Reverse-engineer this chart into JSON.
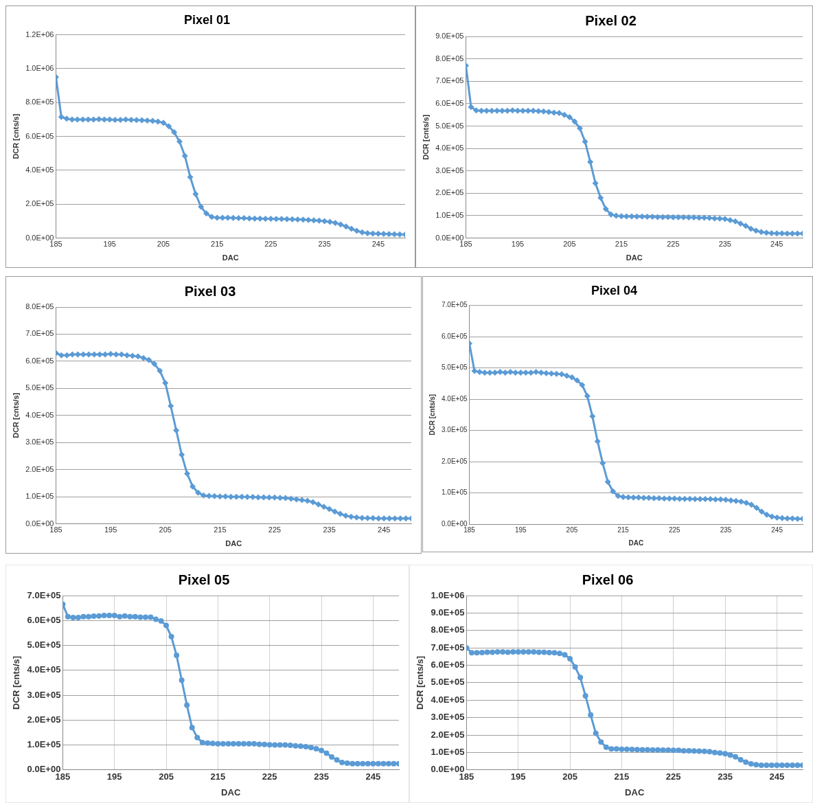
{
  "chart_data": [
    {
      "type": "line",
      "title": "Pixel 01",
      "xlabel": "DAC",
      "ylabel": "DCR [cnts/s]",
      "marker": "diamond",
      "grid": "y",
      "xlim": [
        185,
        250
      ],
      "xticks": [
        185,
        195,
        205,
        215,
        225,
        235,
        245
      ],
      "ylim": [
        0,
        1200000
      ],
      "yticks": [
        {
          "value": 0,
          "label": "0.0E+00"
        },
        {
          "value": 200000,
          "label": "2.0E+05"
        },
        {
          "value": 400000,
          "label": "4.0E+05"
        },
        {
          "value": 600000,
          "label": "6.0E+05"
        },
        {
          "value": 800000,
          "label": "8.0E+05"
        },
        {
          "value": 1000000,
          "label": "1.0E+06"
        },
        {
          "value": 1200000,
          "label": "1.2E+06"
        }
      ],
      "x": [
        185,
        186,
        187,
        188,
        189,
        190,
        191,
        192,
        193,
        194,
        195,
        196,
        197,
        198,
        199,
        200,
        201,
        202,
        203,
        204,
        205,
        206,
        207,
        208,
        209,
        210,
        211,
        212,
        213,
        214,
        215,
        216,
        217,
        218,
        219,
        220,
        221,
        222,
        223,
        224,
        225,
        226,
        227,
        228,
        229,
        230,
        231,
        232,
        233,
        234,
        235,
        236,
        237,
        238,
        239,
        240,
        241,
        242,
        243,
        244,
        245,
        246,
        247,
        248,
        249,
        250
      ],
      "series": [
        {
          "color": "#5b9bd5",
          "values": [
            950000,
            715000,
            705000,
            700000,
            700000,
            700000,
            700000,
            700000,
            702000,
            700000,
            700000,
            698000,
            698000,
            700000,
            698000,
            697000,
            696000,
            694000,
            692000,
            688000,
            680000,
            660000,
            625000,
            570000,
            485000,
            360000,
            260000,
            185000,
            145000,
            125000,
            120000,
            120000,
            120000,
            119000,
            118000,
            118000,
            116000,
            115000,
            115000,
            114000,
            114000,
            113000,
            113000,
            112000,
            111000,
            110000,
            109000,
            107000,
            105000,
            103000,
            100000,
            96000,
            90000,
            80000,
            68000,
            55000,
            43000,
            34000,
            29000,
            27000,
            26000,
            25000,
            24000,
            23000,
            22000,
            21000
          ]
        }
      ]
    },
    {
      "type": "line",
      "title": "Pixel 02",
      "xlabel": "DAC",
      "ylabel": "DCR [cnts/s]",
      "marker": "diamond",
      "grid": "y",
      "xlim": [
        185,
        250
      ],
      "xticks": [
        185,
        195,
        205,
        215,
        225,
        235,
        245
      ],
      "ylim": [
        0,
        900000
      ],
      "yticks": [
        {
          "value": 0,
          "label": "0.0E+00"
        },
        {
          "value": 100000,
          "label": "1.0E+05"
        },
        {
          "value": 200000,
          "label": "2.0E+05"
        },
        {
          "value": 300000,
          "label": "3.0E+05"
        },
        {
          "value": 400000,
          "label": "4.0E+05"
        },
        {
          "value": 500000,
          "label": "5.0E+05"
        },
        {
          "value": 600000,
          "label": "6.0E+05"
        },
        {
          "value": 700000,
          "label": "7.0E+05"
        },
        {
          "value": 800000,
          "label": "8.0E+05"
        },
        {
          "value": 900000,
          "label": "9.0E+05"
        }
      ],
      "x": [
        185,
        186,
        187,
        188,
        189,
        190,
        191,
        192,
        193,
        194,
        195,
        196,
        197,
        198,
        199,
        200,
        201,
        202,
        203,
        204,
        205,
        206,
        207,
        208,
        209,
        210,
        211,
        212,
        213,
        214,
        215,
        216,
        217,
        218,
        219,
        220,
        221,
        222,
        223,
        224,
        225,
        226,
        227,
        228,
        229,
        230,
        231,
        232,
        233,
        234,
        235,
        236,
        237,
        238,
        239,
        240,
        241,
        242,
        243,
        244,
        245,
        246,
        247,
        248,
        249,
        250
      ],
      "series": [
        {
          "color": "#5b9bd5",
          "values": [
            770000,
            585000,
            570000,
            568000,
            568000,
            568000,
            568000,
            568000,
            568000,
            570000,
            568000,
            568000,
            568000,
            568000,
            567000,
            565000,
            563000,
            560000,
            558000,
            550000,
            540000,
            520000,
            490000,
            430000,
            340000,
            245000,
            180000,
            130000,
            105000,
            100000,
            98000,
            97000,
            97000,
            96000,
            96000,
            95000,
            95000,
            94000,
            94000,
            94000,
            93000,
            93000,
            93000,
            92000,
            92000,
            91000,
            91000,
            90000,
            88000,
            87000,
            85000,
            80000,
            75000,
            65000,
            55000,
            42000,
            33000,
            27000,
            24000,
            22000,
            21000,
            21000,
            20000,
            20000,
            20000,
            20000
          ]
        }
      ]
    },
    {
      "type": "line",
      "title": "Pixel 03",
      "xlabel": "DAC",
      "ylabel": "DCR [cnts/s]",
      "marker": "diamond",
      "grid": "y",
      "xlim": [
        185,
        250
      ],
      "xticks": [
        185,
        195,
        205,
        215,
        225,
        235,
        245
      ],
      "ylim": [
        0,
        800000
      ],
      "yticks": [
        {
          "value": 0,
          "label": "0.0E+00"
        },
        {
          "value": 100000,
          "label": "1.0E+05"
        },
        {
          "value": 200000,
          "label": "2.0E+05"
        },
        {
          "value": 300000,
          "label": "3.0E+05"
        },
        {
          "value": 400000,
          "label": "4.0E+05"
        },
        {
          "value": 500000,
          "label": "5.0E+05"
        },
        {
          "value": 600000,
          "label": "6.0E+05"
        },
        {
          "value": 700000,
          "label": "7.0E+05"
        },
        {
          "value": 800000,
          "label": "8.0E+05"
        }
      ],
      "x": [
        185,
        186,
        187,
        188,
        189,
        190,
        191,
        192,
        193,
        194,
        195,
        196,
        197,
        198,
        199,
        200,
        201,
        202,
        203,
        204,
        205,
        206,
        207,
        208,
        209,
        210,
        211,
        212,
        213,
        214,
        215,
        216,
        217,
        218,
        219,
        220,
        221,
        222,
        223,
        224,
        225,
        226,
        227,
        228,
        229,
        230,
        231,
        232,
        233,
        234,
        235,
        236,
        237,
        238,
        239,
        240,
        241,
        242,
        243,
        244,
        245,
        246,
        247,
        248,
        249,
        250
      ],
      "series": [
        {
          "color": "#5b9bd5",
          "values": [
            630000,
            622000,
            622000,
            625000,
            625000,
            625000,
            625000,
            625000,
            625000,
            625000,
            627000,
            625000,
            625000,
            622000,
            620000,
            618000,
            612000,
            605000,
            590000,
            565000,
            520000,
            435000,
            345000,
            255000,
            185000,
            138000,
            115000,
            105000,
            103000,
            102000,
            101000,
            101000,
            100000,
            100000,
            100000,
            99000,
            99000,
            98000,
            98000,
            97000,
            97000,
            96000,
            95000,
            93000,
            90000,
            88000,
            85000,
            80000,
            72000,
            63000,
            55000,
            45000,
            37000,
            30000,
            26000,
            24000,
            22000,
            21000,
            21000,
            20000,
            20000,
            20000,
            20000,
            20000,
            20000,
            20000
          ]
        }
      ]
    },
    {
      "type": "line",
      "title": "Pixel 04",
      "xlabel": "DAC",
      "ylabel": "DCR [cnts/s]",
      "marker": "diamond",
      "grid": "y",
      "xlim": [
        185,
        250
      ],
      "xticks": [
        185,
        195,
        205,
        215,
        225,
        235,
        245
      ],
      "ylim": [
        0,
        700000
      ],
      "yticks": [
        {
          "value": 0,
          "label": "0.0E+00"
        },
        {
          "value": 100000,
          "label": "1.0E+05"
        },
        {
          "value": 200000,
          "label": "2.0E+05"
        },
        {
          "value": 300000,
          "label": "3.0E+05"
        },
        {
          "value": 400000,
          "label": "4.0E+05"
        },
        {
          "value": 500000,
          "label": "5.0E+05"
        },
        {
          "value": 600000,
          "label": "6.0E+05"
        },
        {
          "value": 700000,
          "label": "7.0E+05"
        }
      ],
      "x": [
        185,
        186,
        187,
        188,
        189,
        190,
        191,
        192,
        193,
        194,
        195,
        196,
        197,
        198,
        199,
        200,
        201,
        202,
        203,
        204,
        205,
        206,
        207,
        208,
        209,
        210,
        211,
        212,
        213,
        214,
        215,
        216,
        217,
        218,
        219,
        220,
        221,
        222,
        223,
        224,
        225,
        226,
        227,
        228,
        229,
        230,
        231,
        232,
        233,
        234,
        235,
        236,
        237,
        238,
        239,
        240,
        241,
        242,
        243,
        244,
        245,
        246,
        247,
        248,
        249,
        250
      ],
      "series": [
        {
          "color": "#5b9bd5",
          "values": [
            578000,
            490000,
            487000,
            485000,
            485000,
            485000,
            487000,
            485000,
            487000,
            485000,
            485000,
            485000,
            485000,
            487000,
            485000,
            483000,
            482000,
            481000,
            480000,
            475000,
            470000,
            460000,
            445000,
            410000,
            345000,
            265000,
            195000,
            135000,
            105000,
            90000,
            87000,
            86000,
            85000,
            85000,
            84000,
            84000,
            83000,
            83000,
            82000,
            82000,
            82000,
            81000,
            81000,
            81000,
            80000,
            80000,
            80000,
            80000,
            79000,
            79000,
            78000,
            76000,
            74000,
            72000,
            68000,
            62000,
            52000,
            40000,
            30000,
            24000,
            21000,
            19000,
            18000,
            18000,
            17000,
            17000
          ]
        }
      ]
    },
    {
      "type": "line",
      "title": "Pixel 05",
      "xlabel": "DAC",
      "ylabel": "DCR [cnts/s]",
      "marker": "circle",
      "grid": true,
      "xlim": [
        185,
        250
      ],
      "xticks": [
        185,
        195,
        205,
        215,
        225,
        235,
        245
      ],
      "ylim": [
        0,
        700000
      ],
      "yticks": [
        {
          "value": 0,
          "label": "0.0E+00"
        },
        {
          "value": 100000,
          "label": "1.0E+05"
        },
        {
          "value": 200000,
          "label": "2.0E+05"
        },
        {
          "value": 300000,
          "label": "3.0E+05"
        },
        {
          "value": 400000,
          "label": "4.0E+05"
        },
        {
          "value": 500000,
          "label": "5.0E+05"
        },
        {
          "value": 600000,
          "label": "6.0E+05"
        },
        {
          "value": 700000,
          "label": "7.0E+05"
        }
      ],
      "x": [
        185,
        186,
        187,
        188,
        189,
        190,
        191,
        192,
        193,
        194,
        195,
        196,
        197,
        198,
        199,
        200,
        201,
        202,
        203,
        204,
        205,
        206,
        207,
        208,
        209,
        210,
        211,
        212,
        213,
        214,
        215,
        216,
        217,
        218,
        219,
        220,
        221,
        222,
        223,
        224,
        225,
        226,
        227,
        228,
        229,
        230,
        231,
        232,
        233,
        234,
        235,
        236,
        237,
        238,
        239,
        240,
        241,
        242,
        243,
        244,
        245,
        246,
        247,
        248,
        249,
        250
      ],
      "series": [
        {
          "color": "#5b9bd5",
          "values": [
            665000,
            615000,
            612000,
            612000,
            615000,
            615000,
            617000,
            618000,
            620000,
            620000,
            620000,
            615000,
            618000,
            615000,
            615000,
            613000,
            613000,
            613000,
            605000,
            598000,
            580000,
            535000,
            460000,
            360000,
            260000,
            170000,
            130000,
            110000,
            108000,
            106000,
            105000,
            105000,
            105000,
            105000,
            105000,
            105000,
            105000,
            105000,
            103000,
            102000,
            101000,
            100000,
            100000,
            100000,
            99000,
            97000,
            95000,
            93000,
            90000,
            85000,
            78000,
            67000,
            52000,
            40000,
            30000,
            27000,
            25000,
            25000,
            25000,
            25000,
            25000,
            25000,
            25000,
            25000,
            25000,
            25000
          ]
        }
      ]
    },
    {
      "type": "line",
      "title": "Pixel 06",
      "xlabel": "DAC",
      "ylabel": "DCR [cnts/s]",
      "marker": "circle",
      "grid": true,
      "xlim": [
        185,
        250
      ],
      "xticks": [
        185,
        195,
        205,
        215,
        225,
        235,
        245
      ],
      "ylim": [
        0,
        1000000
      ],
      "yticks": [
        {
          "value": 0,
          "label": "0.0E+00"
        },
        {
          "value": 100000,
          "label": "1.0E+05"
        },
        {
          "value": 200000,
          "label": "2.0E+05"
        },
        {
          "value": 300000,
          "label": "3.0E+05"
        },
        {
          "value": 400000,
          "label": "4.0E+05"
        },
        {
          "value": 500000,
          "label": "5.0E+05"
        },
        {
          "value": 600000,
          "label": "6.0E+05"
        },
        {
          "value": 700000,
          "label": "7.0E+05"
        },
        {
          "value": 800000,
          "label": "8.0E+05"
        },
        {
          "value": 900000,
          "label": "9.0E+05"
        },
        {
          "value": 1000000,
          "label": "1.0E+06"
        }
      ],
      "x": [
        185,
        186,
        187,
        188,
        189,
        190,
        191,
        192,
        193,
        194,
        195,
        196,
        197,
        198,
        199,
        200,
        201,
        202,
        203,
        204,
        205,
        206,
        207,
        208,
        209,
        210,
        211,
        212,
        213,
        214,
        215,
        216,
        217,
        218,
        219,
        220,
        221,
        222,
        223,
        224,
        225,
        226,
        227,
        228,
        229,
        230,
        231,
        232,
        233,
        234,
        235,
        236,
        237,
        238,
        239,
        240,
        241,
        242,
        243,
        244,
        245,
        246,
        247,
        248,
        249,
        250
      ],
      "series": [
        {
          "color": "#5b9bd5",
          "values": [
            700000,
            672000,
            672000,
            673000,
            675000,
            675000,
            677000,
            677000,
            675000,
            677000,
            677000,
            677000,
            677000,
            677000,
            675000,
            675000,
            673000,
            672000,
            668000,
            660000,
            638000,
            590000,
            530000,
            425000,
            315000,
            210000,
            160000,
            130000,
            120000,
            120000,
            118000,
            118000,
            117000,
            116000,
            115000,
            115000,
            114000,
            114000,
            113000,
            113000,
            112000,
            112000,
            110000,
            110000,
            109000,
            108000,
            107000,
            105000,
            100000,
            97000,
            93000,
            85000,
            75000,
            58000,
            45000,
            35000,
            30000,
            27000,
            27000,
            27000,
            27000,
            27000,
            27000,
            27000,
            27000,
            27000
          ]
        }
      ]
    }
  ]
}
